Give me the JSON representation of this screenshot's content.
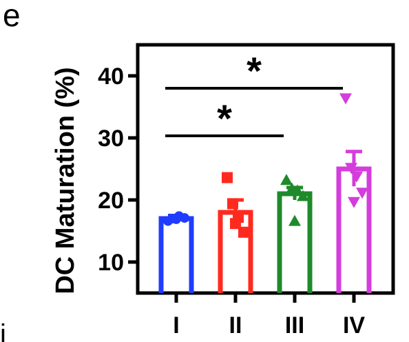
{
  "panel_label": "e",
  "partial_label": "i",
  "chart_data": {
    "type": "bar",
    "ylabel": "DC Maturation (%)",
    "ylim": [
      5,
      45
    ],
    "yticks": [
      10,
      20,
      30,
      40
    ],
    "categories": [
      "I",
      "II",
      "III",
      "IV"
    ],
    "values": [
      17.0,
      18.0,
      21.0,
      25.0
    ],
    "errors": [
      0.5,
      2.0,
      1.0,
      2.8
    ],
    "colors": [
      "#1f3cff",
      "#ff2a1f",
      "#1e8a2a",
      "#d43ddb"
    ],
    "markers": [
      "circle",
      "square",
      "triangle-up",
      "triangle-down"
    ],
    "points": [
      [
        16.6,
        17.0,
        17.4,
        17.1,
        16.9
      ],
      [
        23.6,
        19.4,
        17.2,
        14.8,
        16.2
      ],
      [
        23.2,
        21.8,
        21.5,
        20.6,
        16.6
      ],
      [
        36.4,
        25.2,
        23.8,
        21.2,
        19.7
      ]
    ],
    "significance": [
      {
        "from": 0,
        "to": 2,
        "label": "*"
      },
      {
        "from": 0,
        "to": 3,
        "label": "*"
      }
    ],
    "grid": false
  }
}
